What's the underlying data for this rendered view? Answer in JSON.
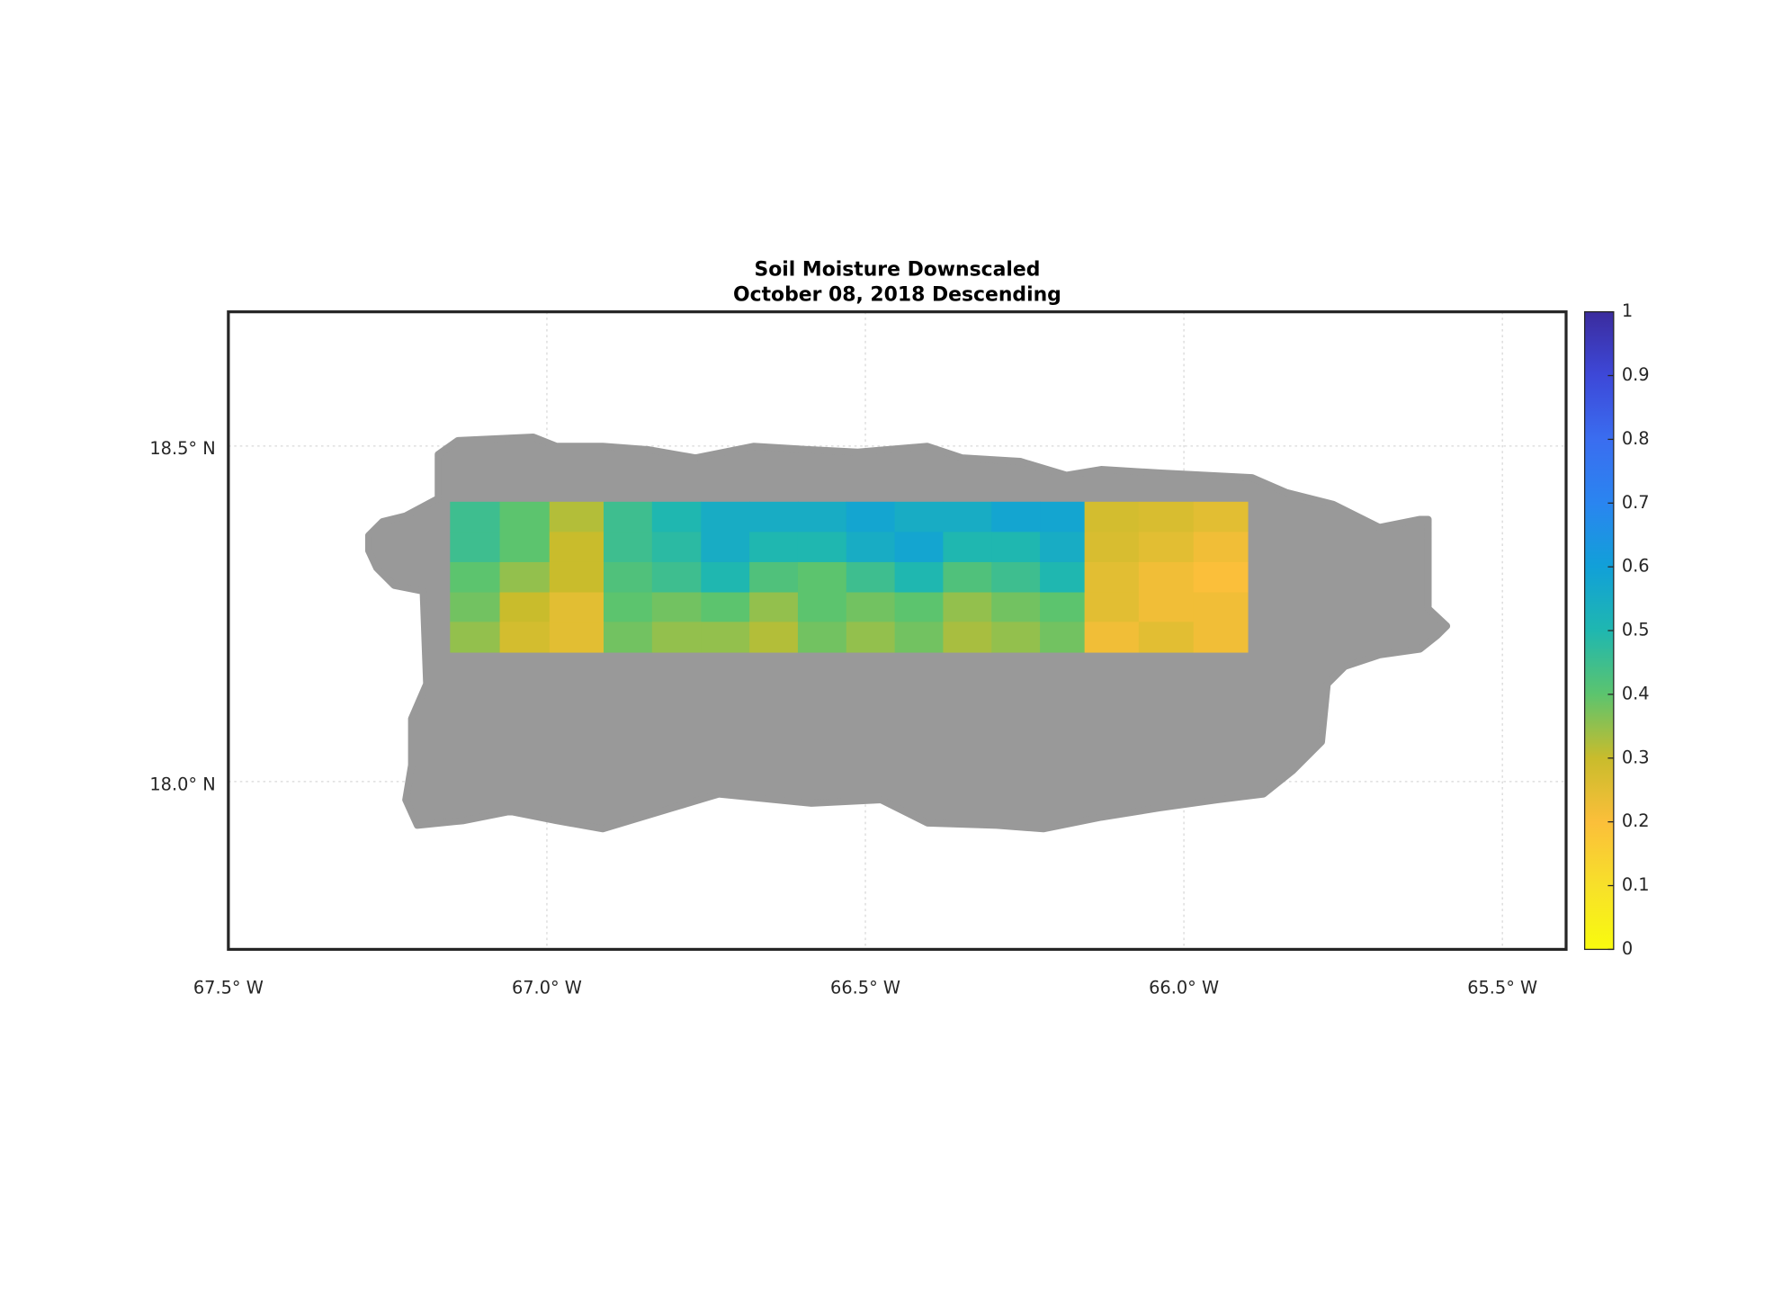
{
  "chart_data": {
    "type": "heatmap",
    "title": [
      "Soil Moisture Downscaled",
      "October 08, 2018 Descending"
    ],
    "xlim": [
      -67.5,
      -65.4
    ],
    "ylim": [
      17.75,
      18.7
    ],
    "xticks": [
      {
        "value": -67.5,
        "label": "67.5° W"
      },
      {
        "value": -67.0,
        "label": "67.0° W"
      },
      {
        "value": -66.5,
        "label": "66.5° W"
      },
      {
        "value": -66.0,
        "label": "66.0° W"
      },
      {
        "value": -65.5,
        "label": "65.5° W"
      }
    ],
    "yticks": [
      {
        "value": 18.0,
        "label": "18.0° N"
      },
      {
        "value": 18.5,
        "label": "18.5° N"
      }
    ],
    "grid": true,
    "lon_edges": [
      -67.152,
      -67.074,
      -66.996,
      -66.911,
      -66.835,
      -66.758,
      -66.682,
      -66.606,
      -66.53,
      -66.454,
      -66.378,
      -66.302,
      -66.226,
      -66.156,
      -66.071,
      -65.985,
      -65.9
    ],
    "lat_edges": [
      18.417,
      18.372,
      18.327,
      18.282,
      18.238,
      18.193
    ],
    "values": [
      [
        0.45,
        0.4,
        0.32,
        0.45,
        0.5,
        0.55,
        0.55,
        0.55,
        0.58,
        0.55,
        0.55,
        0.58,
        0.58,
        0.28,
        0.27,
        0.25
      ],
      [
        0.45,
        0.4,
        0.3,
        0.45,
        0.48,
        0.55,
        0.5,
        0.5,
        0.55,
        0.58,
        0.5,
        0.5,
        0.55,
        0.27,
        0.25,
        0.22
      ],
      [
        0.4,
        0.35,
        0.3,
        0.42,
        0.45,
        0.5,
        0.42,
        0.4,
        0.45,
        0.5,
        0.42,
        0.45,
        0.5,
        0.25,
        0.22,
        0.2
      ],
      [
        0.38,
        0.3,
        0.25,
        0.4,
        0.38,
        0.4,
        0.35,
        0.4,
        0.38,
        0.4,
        0.35,
        0.38,
        0.4,
        0.25,
        0.22,
        0.22
      ],
      [
        0.35,
        0.28,
        0.25,
        0.38,
        0.35,
        0.35,
        0.32,
        0.38,
        0.35,
        0.38,
        0.33,
        0.35,
        0.38,
        0.22,
        0.25,
        0.22
      ]
    ],
    "clim": [
      0,
      1
    ],
    "colormap": [
      "#f9fb0e",
      "#f7e02a",
      "#fbbf3a",
      "#c9bc2c",
      "#5cc46e",
      "#1fb7b0",
      "#11a0d8",
      "#2a85f0",
      "#3a6df0",
      "#3d48d8",
      "#3b2c9e"
    ],
    "cticks": [
      0,
      0.1,
      0.2,
      0.3,
      0.4,
      0.5,
      0.6,
      0.7,
      0.8,
      0.9,
      1
    ]
  }
}
